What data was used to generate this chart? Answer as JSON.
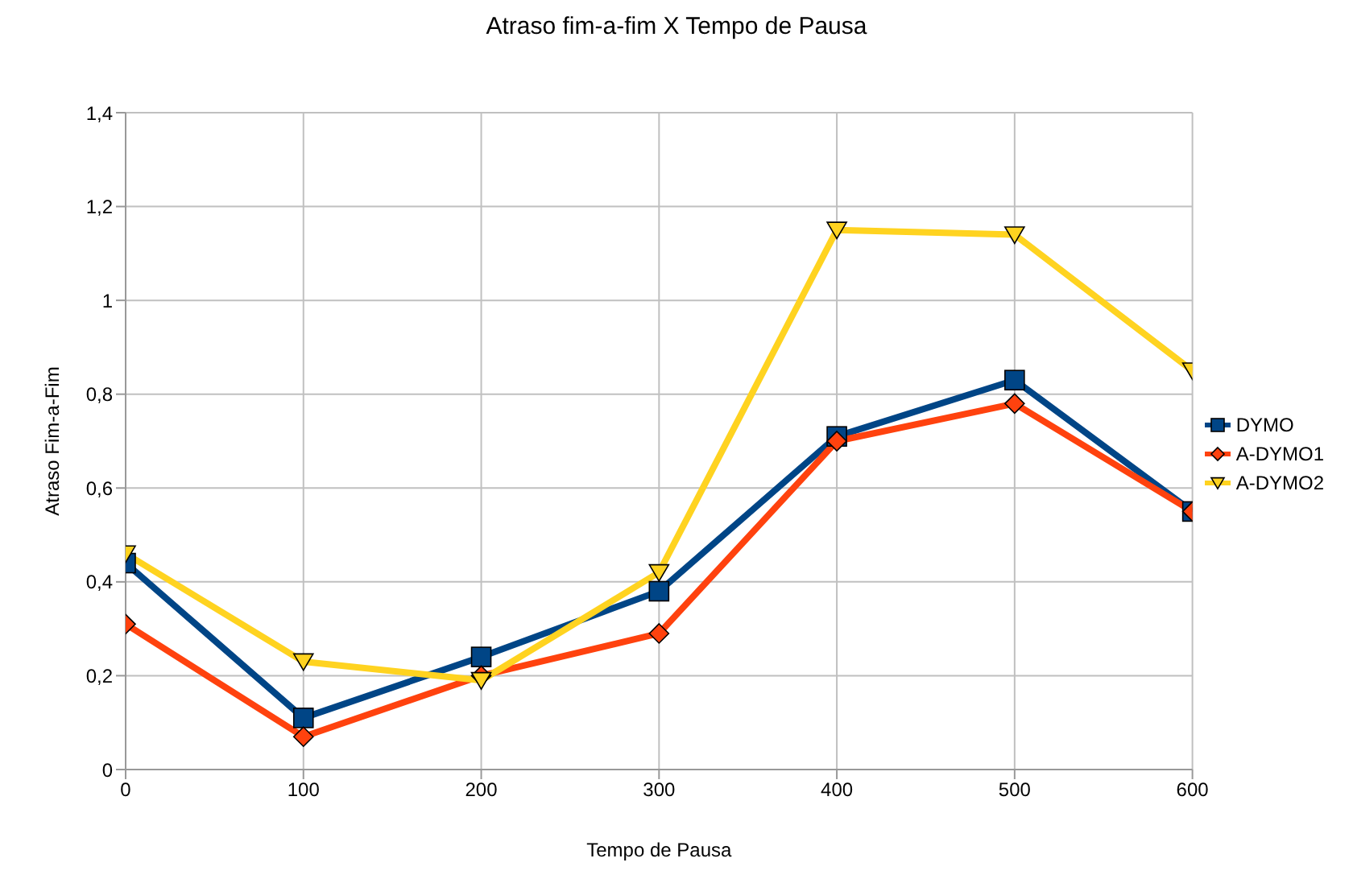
{
  "chart_data": {
    "type": "line",
    "title": "Atraso fim-a-fim X Tempo de Pausa",
    "xlabel": "Tempo de Pausa",
    "ylabel": "Atraso Fim-a-Fim",
    "x": [
      0,
      100,
      200,
      300,
      400,
      500,
      600
    ],
    "series": [
      {
        "name": "DYMO",
        "color": "#004586",
        "marker": "square",
        "values": [
          0.44,
          0.11,
          0.24,
          0.38,
          0.71,
          0.83,
          0.55
        ]
      },
      {
        "name": "A-DYMO1",
        "color": "#ff420e",
        "marker": "diamond",
        "values": [
          0.31,
          0.07,
          0.2,
          0.29,
          0.7,
          0.78,
          0.55
        ]
      },
      {
        "name": "A-DYMO2",
        "color": "#ffd320",
        "marker": "triangle",
        "values": [
          0.46,
          0.23,
          0.19,
          0.42,
          1.15,
          1.14,
          0.85
        ]
      }
    ],
    "xlim": [
      0,
      600
    ],
    "xticks": [
      0,
      100,
      200,
      300,
      400,
      500,
      600
    ],
    "ylim": [
      0,
      1.4
    ],
    "yticks": [
      0,
      {
        "value": 0.2,
        "label": "0,2"
      },
      {
        "value": 0.4,
        "label": "0,4"
      },
      {
        "value": 0.6,
        "label": "0,6"
      },
      {
        "value": 0.8,
        "label": "0,8"
      },
      1,
      {
        "value": 1.2,
        "label": "1,2"
      },
      {
        "value": 1.4,
        "label": "1,4"
      }
    ],
    "grid": true,
    "legend": "right"
  }
}
